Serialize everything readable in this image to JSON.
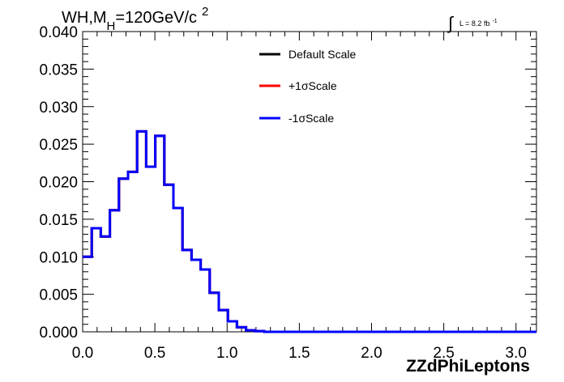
{
  "chart_data": {
    "type": "line",
    "title": {
      "main": "WH,M",
      "sub": "H",
      "value": "=120GeV/c",
      "sup": "2"
    },
    "lumi": {
      "integral": "∫",
      "text": "L = 8.2 fb",
      "sup": "-1"
    },
    "xlabel": "ZZdPhiLeptons",
    "ylabel": "",
    "xlim": [
      0,
      3.14159
    ],
    "ylim": [
      0,
      0.04
    ],
    "xticks": [
      0.0,
      0.5,
      1.0,
      1.5,
      2.0,
      2.5,
      3.0
    ],
    "xtick_labels": [
      "0.0",
      "0.5",
      "1.0",
      "1.5",
      "2.0",
      "2.5",
      "3.0"
    ],
    "yticks": [
      0.0,
      0.005,
      0.01,
      0.015,
      0.02,
      0.025,
      0.03,
      0.035,
      0.04
    ],
    "ytick_labels": [
      "0.000",
      "0.005",
      "0.010",
      "0.015",
      "0.020",
      "0.025",
      "0.030",
      "0.035",
      "0.040"
    ],
    "grid": false,
    "legend_position": "top-right",
    "bin_edges": [
      0.0,
      0.0628,
      0.1257,
      0.1885,
      0.2513,
      0.3142,
      0.377,
      0.4398,
      0.5027,
      0.5655,
      0.6283,
      0.6912,
      0.754,
      0.8168,
      0.8796,
      0.9425,
      1.0053,
      1.0681,
      1.131,
      1.1938,
      1.2566,
      3.14159
    ],
    "series": [
      {
        "name": "Default Scale",
        "color": "#000000",
        "values": [
          0.01,
          0.0138,
          0.0127,
          0.0162,
          0.0204,
          0.0213,
          0.0267,
          0.022,
          0.0261,
          0.0196,
          0.0165,
          0.0109,
          0.0096,
          0.0083,
          0.0052,
          0.0029,
          0.0014,
          0.0006,
          0.0002,
          0.0001,
          0.0
        ]
      },
      {
        "name": "+1σScale",
        "color": "#ff0000",
        "values": [
          0.01,
          0.0138,
          0.0127,
          0.0162,
          0.0204,
          0.0213,
          0.0267,
          0.022,
          0.0261,
          0.0196,
          0.0165,
          0.0109,
          0.0096,
          0.0083,
          0.0052,
          0.0029,
          0.0014,
          0.0006,
          0.0002,
          0.0001,
          0.0
        ]
      },
      {
        "name": "-1σScale",
        "color": "#0000ff",
        "values": [
          0.01,
          0.0138,
          0.0127,
          0.0162,
          0.0204,
          0.0213,
          0.0267,
          0.022,
          0.0261,
          0.0196,
          0.0165,
          0.0109,
          0.0096,
          0.0083,
          0.0052,
          0.0029,
          0.0014,
          0.0006,
          0.0002,
          0.0001,
          0.0
        ]
      }
    ]
  }
}
